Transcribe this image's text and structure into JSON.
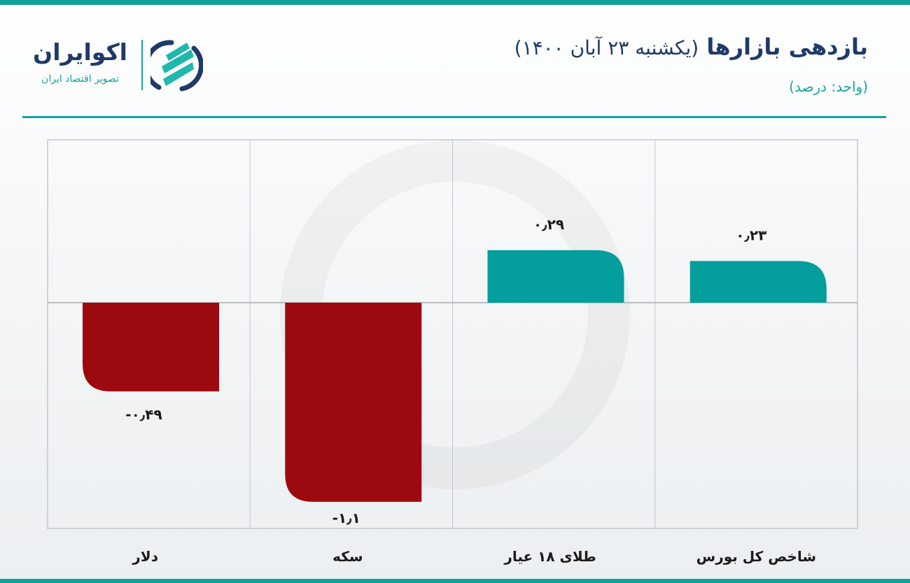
{
  "header": {
    "title": "بازدهی بازارها",
    "title_date": "(یکشنبه ۲۳ آبان ۱۴۰۰)",
    "unit": "(واحد: درصد)"
  },
  "logo": {
    "name": "اکوایران",
    "tagline": "تصویر اقتصاد ایران"
  },
  "colors": {
    "positive": "#049e9c",
    "negative": "#9c0a10",
    "accent": "#11a19a",
    "title": "#1f3a68"
  },
  "chart_data": {
    "type": "bar",
    "categories": [
      "شاخص کل بورس",
      "طلای ۱۸ عیار",
      "سکه",
      "دلار"
    ],
    "values": [
      0.23,
      0.29,
      -1.1,
      -0.49
    ],
    "value_labels": [
      "۰٫۲۳",
      "۰٫۲۹",
      "-۱٫۱",
      "-۰٫۴۹"
    ],
    "title": "بازدهی بازارها (یکشنبه ۲۳ آبان ۱۴۰۰)",
    "ylabel": "",
    "xlabel": "",
    "unit": "درصد",
    "grid": true,
    "category_order": "right-to-left"
  }
}
